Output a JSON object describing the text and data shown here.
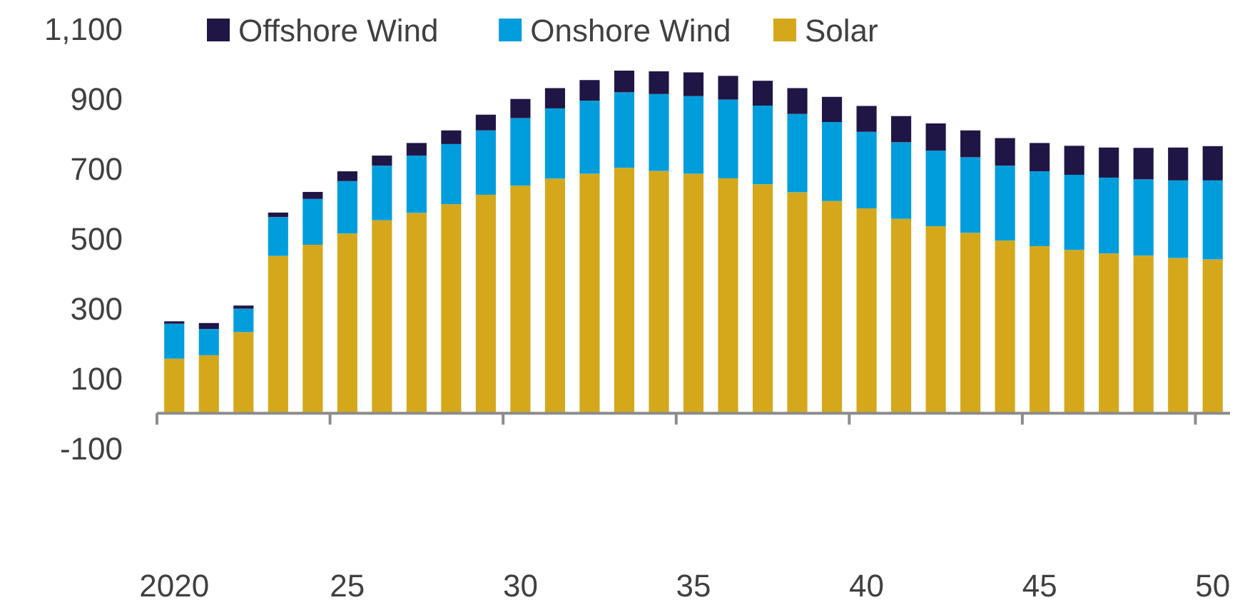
{
  "chart_data": {
    "type": "bar",
    "stacked": true,
    "legend": "top",
    "grid": false,
    "categories": [
      "2020",
      null,
      null,
      null,
      null,
      "25",
      null,
      null,
      null,
      null,
      "30",
      null,
      null,
      null,
      null,
      "35",
      null,
      null,
      null,
      null,
      "40",
      null,
      null,
      null,
      null,
      "45",
      null,
      null,
      null,
      null,
      "50"
    ],
    "ylim": [
      -100,
      1100
    ],
    "yticks": [
      -100,
      100,
      300,
      500,
      700,
      900,
      {
        "value": 1100,
        "label": "1,100"
      }
    ],
    "series": [
      {
        "name": "Solar",
        "color": "#d4a81a",
        "values": [
          156,
          166,
          232,
          450,
          482,
          514,
          552,
          573,
          598,
          625,
          651,
          671,
          685,
          702,
          693,
          685,
          672,
          655,
          632,
          607,
          586,
          556,
          535,
          516,
          494,
          478,
          467,
          457,
          451,
          444,
          440
        ]
      },
      {
        "name": "Onshore Wind",
        "color": "#009ddc",
        "values": [
          100,
          75,
          67,
          111,
          131,
          150,
          156,
          164,
          172,
          184,
          193,
          201,
          209,
          216,
          220,
          222,
          225,
          225,
          224,
          226,
          219,
          219,
          216,
          216,
          214,
          214,
          215,
          217,
          218,
          222,
          226
        ]
      },
      {
        "name": "Offshore Wind",
        "color": "#1f1646",
        "values": [
          7,
          17,
          9,
          13,
          20,
          28,
          29,
          36,
          39,
          45,
          55,
          58,
          59,
          62,
          65,
          68,
          68,
          71,
          74,
          72,
          74,
          75,
          78,
          77,
          79,
          81,
          83,
          86,
          90,
          94,
          98
        ]
      }
    ]
  }
}
